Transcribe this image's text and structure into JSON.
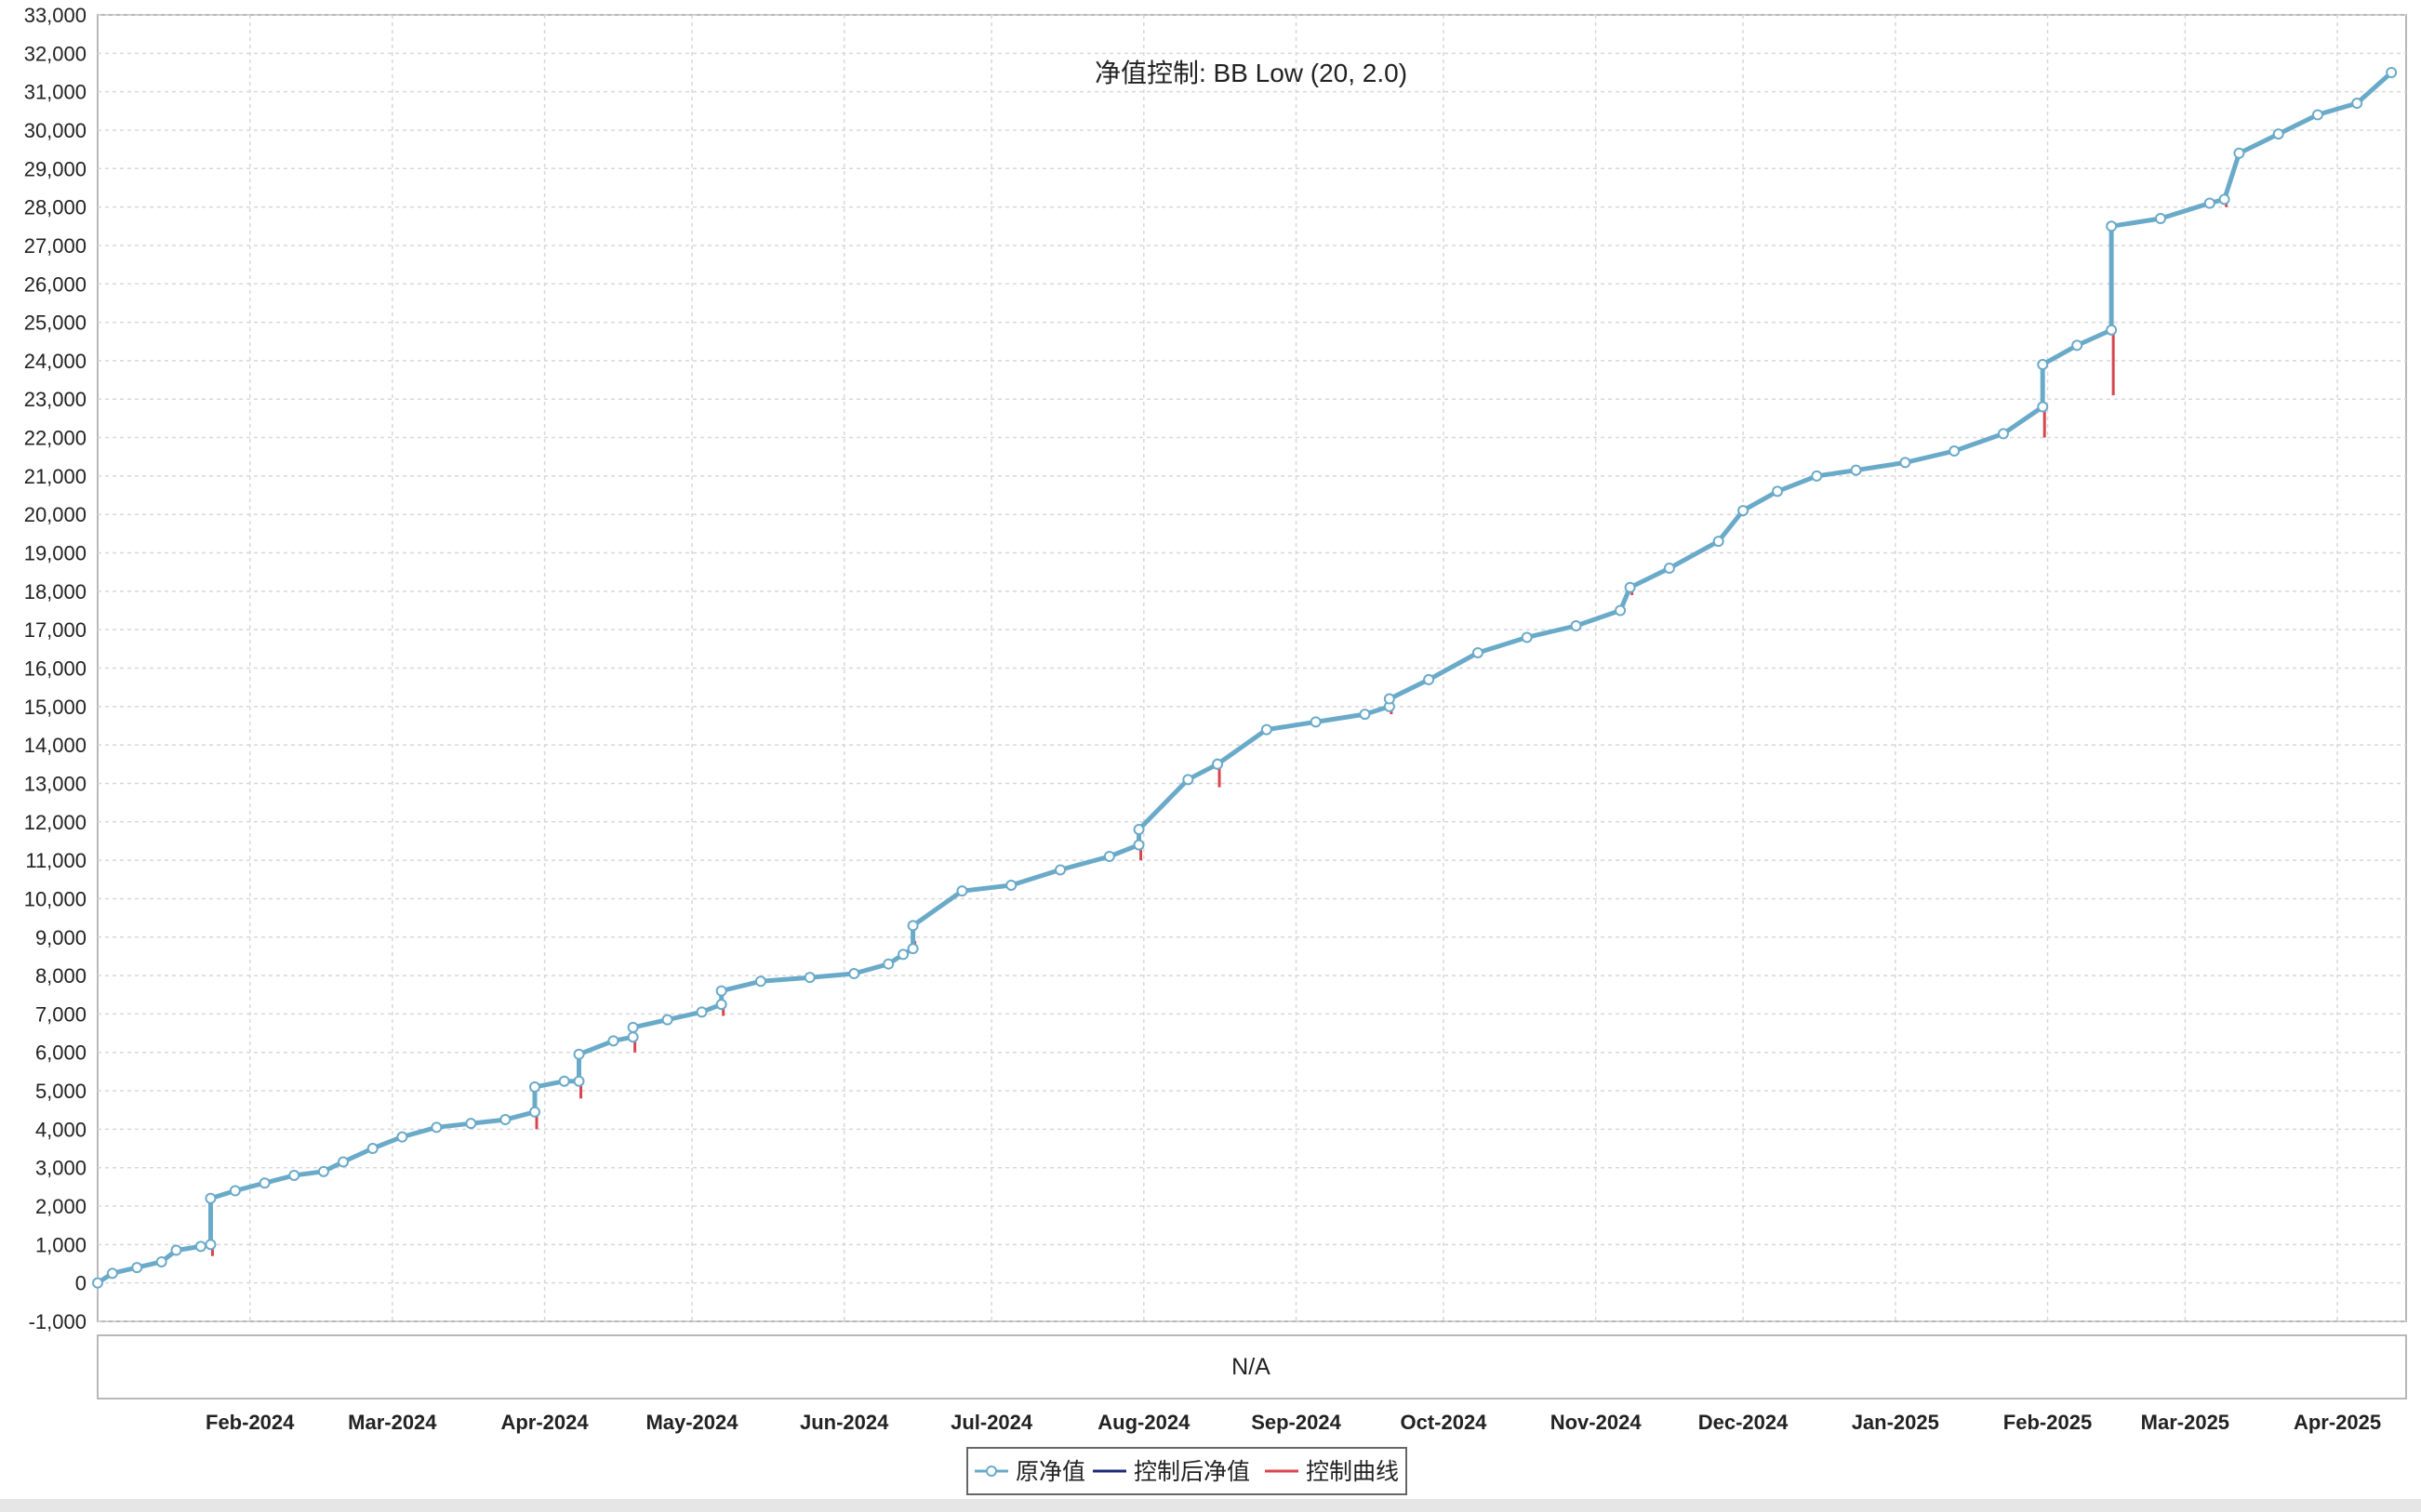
{
  "chart_data": {
    "type": "line",
    "title": "净值控制: BB Low (20, 2.0)",
    "ylim": [
      -1000,
      33000
    ],
    "y_ticks": [
      -1000,
      0,
      1000,
      2000,
      3000,
      4000,
      5000,
      6000,
      7000,
      8000,
      9000,
      10000,
      11000,
      12000,
      13000,
      14000,
      15000,
      16000,
      17000,
      18000,
      19000,
      20000,
      21000,
      22000,
      23000,
      24000,
      25000,
      26000,
      27000,
      28000,
      29000,
      30000,
      31000,
      32000,
      33000
    ],
    "y_tick_labels": [
      "-1,000",
      "0",
      "1,000",
      "2,000",
      "3,000",
      "4,000",
      "5,000",
      "6,000",
      "7,000",
      "8,000",
      "9,000",
      "10,000",
      "11,000",
      "12,000",
      "13,000",
      "14,000",
      "15,000",
      "16,000",
      "17,000",
      "18,000",
      "19,000",
      "20,000",
      "21,000",
      "22,000",
      "23,000",
      "24,000",
      "25,000",
      "26,000",
      "27,000",
      "28,000",
      "29,000",
      "30,000",
      "31,000",
      "32,000",
      "33,000"
    ],
    "xlim": [
      "2024-01-01",
      "2025-04-15"
    ],
    "x_ticks": [
      "2024-02-01",
      "2024-03-01",
      "2024-04-01",
      "2024-05-01",
      "2024-06-01",
      "2024-07-01",
      "2024-08-01",
      "2024-09-01",
      "2024-10-01",
      "2024-11-01",
      "2024-12-01",
      "2025-01-01",
      "2025-02-01",
      "2025-03-01",
      "2025-04-01"
    ],
    "x_tick_labels": [
      "Feb-2024",
      "Mar-2024",
      "Apr-2024",
      "May-2024",
      "Jun-2024",
      "Jul-2024",
      "Aug-2024",
      "Sep-2024",
      "Oct-2024",
      "Nov-2024",
      "Dec-2024",
      "Jan-2025",
      "Feb-2025",
      "Mar-2025",
      "Apr-2025"
    ],
    "grid": true,
    "lower_panel_text": "N/A",
    "legend_position": "bottom-center",
    "series": [
      {
        "name": "原净值",
        "color": "#6aaac9",
        "marker": "hollow-circle",
        "x": [
          "2024-01-01",
          "2024-01-04",
          "2024-01-09",
          "2024-01-14",
          "2024-01-17",
          "2024-01-22",
          "2024-01-24",
          "2024-01-24",
          "2024-01-29",
          "2024-02-04",
          "2024-02-10",
          "2024-02-16",
          "2024-02-20",
          "2024-02-26",
          "2024-03-03",
          "2024-03-10",
          "2024-03-17",
          "2024-03-24",
          "2024-03-30",
          "2024-03-30",
          "2024-04-05",
          "2024-04-08",
          "2024-04-08",
          "2024-04-15",
          "2024-04-19",
          "2024-04-19",
          "2024-04-26",
          "2024-05-03",
          "2024-05-07",
          "2024-05-07",
          "2024-05-15",
          "2024-05-25",
          "2024-06-03",
          "2024-06-10",
          "2024-06-13",
          "2024-06-15",
          "2024-06-15",
          "2024-06-25",
          "2024-07-05",
          "2024-07-15",
          "2024-07-25",
          "2024-07-31",
          "2024-07-31",
          "2024-08-10",
          "2024-08-16",
          "2024-08-16",
          "2024-08-26",
          "2024-09-05",
          "2024-09-15",
          "2024-09-20",
          "2024-09-20",
          "2024-09-28",
          "2024-10-08",
          "2024-10-18",
          "2024-10-28",
          "2024-11-06",
          "2024-11-08",
          "2024-11-16",
          "2024-11-26",
          "2024-12-01",
          "2024-12-08",
          "2024-12-16",
          "2024-12-24",
          "2025-01-03",
          "2025-01-13",
          "2025-01-23",
          "2025-01-31",
          "2025-01-31",
          "2025-02-07",
          "2025-02-14",
          "2025-02-14",
          "2025-02-24",
          "2025-03-06",
          "2025-03-09",
          "2025-03-12",
          "2025-03-20",
          "2025-03-28",
          "2025-04-05",
          "2025-04-12"
        ],
        "values": [
          0,
          250,
          400,
          550,
          850,
          950,
          1000,
          2200,
          2400,
          2600,
          2800,
          2900,
          3150,
          3500,
          3800,
          4050,
          4150,
          4250,
          4450,
          5100,
          5250,
          5250,
          5950,
          6300,
          6400,
          6650,
          6850,
          7050,
          7250,
          7600,
          7850,
          7950,
          8050,
          8300,
          8550,
          8700,
          9300,
          10200,
          10350,
          10750,
          11100,
          11400,
          11800,
          13100,
          13500,
          13500,
          14400,
          14600,
          14800,
          15000,
          15200,
          15700,
          16400,
          16800,
          17100,
          17500,
          18100,
          18600,
          19300,
          20100,
          20600,
          21000,
          21150,
          21350,
          21650,
          22100,
          22800,
          23900,
          24400,
          24800,
          27500,
          27700,
          28100,
          28200,
          29400,
          29900,
          30400,
          30700,
          31500
        ]
      },
      {
        "name": "控制后净值",
        "color": "#1f2a78",
        "marker": "line",
        "x": [],
        "values": []
      },
      {
        "name": "控制曲线",
        "color": "#d9454f",
        "marker": "line",
        "x": [
          "2024-01-24",
          "2024-03-30",
          "2024-04-08",
          "2024-04-19",
          "2024-05-07",
          "2024-06-15",
          "2024-07-31",
          "2024-08-16",
          "2024-09-20",
          "2024-11-08",
          "2025-01-31",
          "2025-02-14",
          "2025-03-09"
        ],
        "values": [
          700,
          4000,
          4800,
          6000,
          6950,
          8900,
          11000,
          12900,
          14800,
          17900,
          22000,
          23100,
          28000
        ]
      }
    ]
  },
  "legend": {
    "items": [
      {
        "label": "原净值"
      },
      {
        "label": "控制后净值"
      },
      {
        "label": "控制曲线"
      }
    ]
  }
}
